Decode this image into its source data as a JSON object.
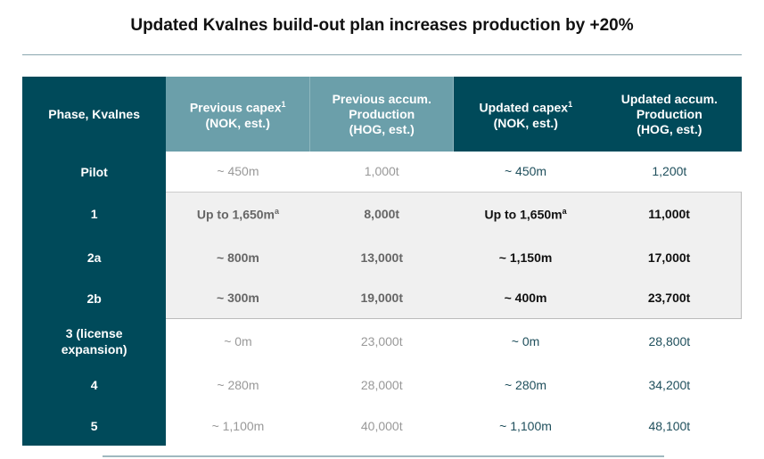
{
  "title": "Updated Kvalnes build-out plan increases production by +20%",
  "headers": {
    "phase": "Phase, Kvalnes",
    "prev_capex": "Previous capex",
    "prev_capex_sup": "1",
    "prev_capex_unit": "(NOK, est.)",
    "prev_prod": "Previous accum.",
    "prev_prod2": "Production",
    "prev_prod_unit": "(HOG, est.)",
    "upd_capex": "Updated capex",
    "upd_capex_sup": "1",
    "upd_capex_unit": "(NOK, est.)",
    "upd_prod": "Updated accum.",
    "upd_prod2": "Production",
    "upd_prod_unit": "(HOG, est.)"
  },
  "rows": [
    {
      "phase": "Pilot",
      "prev_capex": "~ 450m",
      "prev_prod": "1,000t",
      "upd_capex": "~ 450m",
      "upd_prod": "1,200t"
    },
    {
      "phase": "1",
      "prev_capex": "Up to 1,650m",
      "sup": "a",
      "prev_prod": "8,000t",
      "upd_capex": "Up to 1,650m",
      "upd_prod": "11,000t"
    },
    {
      "phase": "2a",
      "prev_capex": "~ 800m",
      "prev_prod": "13,000t",
      "upd_capex": "~ 1,150m",
      "upd_prod": "17,000t"
    },
    {
      "phase": "2b",
      "prev_capex": "~ 300m",
      "prev_prod": "19,000t",
      "upd_capex": "~ 400m",
      "upd_prod": "23,700t"
    },
    {
      "phase": "3 (license expansion)",
      "prev_capex": "~ 0m",
      "prev_prod": "23,000t",
      "upd_capex": "~ 0m",
      "upd_prod": "28,800t"
    },
    {
      "phase": "4",
      "prev_capex": "~ 280m",
      "prev_prod": "28,000t",
      "upd_capex": "~ 280m",
      "upd_prod": "34,200t"
    },
    {
      "phase": "5",
      "prev_capex": "~ 1,100m",
      "prev_prod": "40,000t",
      "upd_capex": "~ 1,100m",
      "upd_prod": "48,100t"
    }
  ],
  "colors": {
    "dark_teal": "#004a5a",
    "light_teal": "#6b9faa",
    "highlight": "#f0f0f0"
  }
}
